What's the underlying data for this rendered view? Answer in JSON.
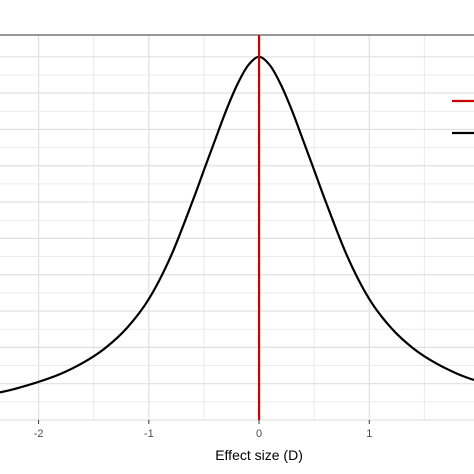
{
  "chart_data": {
    "type": "line",
    "xlabel": "Effect size (D)",
    "ylabel": "",
    "title": "",
    "xlim": [
      -2.35,
      1.95
    ],
    "ylim": [
      0.0,
      1.06
    ],
    "x_ticks": [
      -2,
      -1,
      0,
      1
    ],
    "x_tick_labels": [
      "-2",
      "-1",
      "0",
      "1"
    ],
    "grid": true,
    "legend": "right",
    "series": [
      {
        "kind": "curve",
        "color": "#000000",
        "x": [
          -2.35,
          -2.2,
          -2.0,
          -1.8,
          -1.6,
          -1.4,
          -1.2,
          -1.0,
          -0.8,
          -0.6,
          -0.5,
          -0.4,
          -0.3,
          -0.2,
          -0.1,
          0.0,
          0.1,
          0.2,
          0.3,
          0.4,
          0.5,
          0.6,
          0.8,
          1.0,
          1.2,
          1.4,
          1.6,
          1.8,
          1.95
        ],
        "y": [
          0.076,
          0.087,
          0.105,
          0.127,
          0.157,
          0.197,
          0.253,
          0.333,
          0.451,
          0.605,
          0.688,
          0.77,
          0.851,
          0.922,
          0.976,
          1.0,
          0.976,
          0.922,
          0.851,
          0.77,
          0.688,
          0.605,
          0.451,
          0.333,
          0.253,
          0.197,
          0.157,
          0.127,
          0.11
        ]
      },
      {
        "kind": "vline",
        "color": "#cc0000",
        "x": 0
      }
    ]
  }
}
